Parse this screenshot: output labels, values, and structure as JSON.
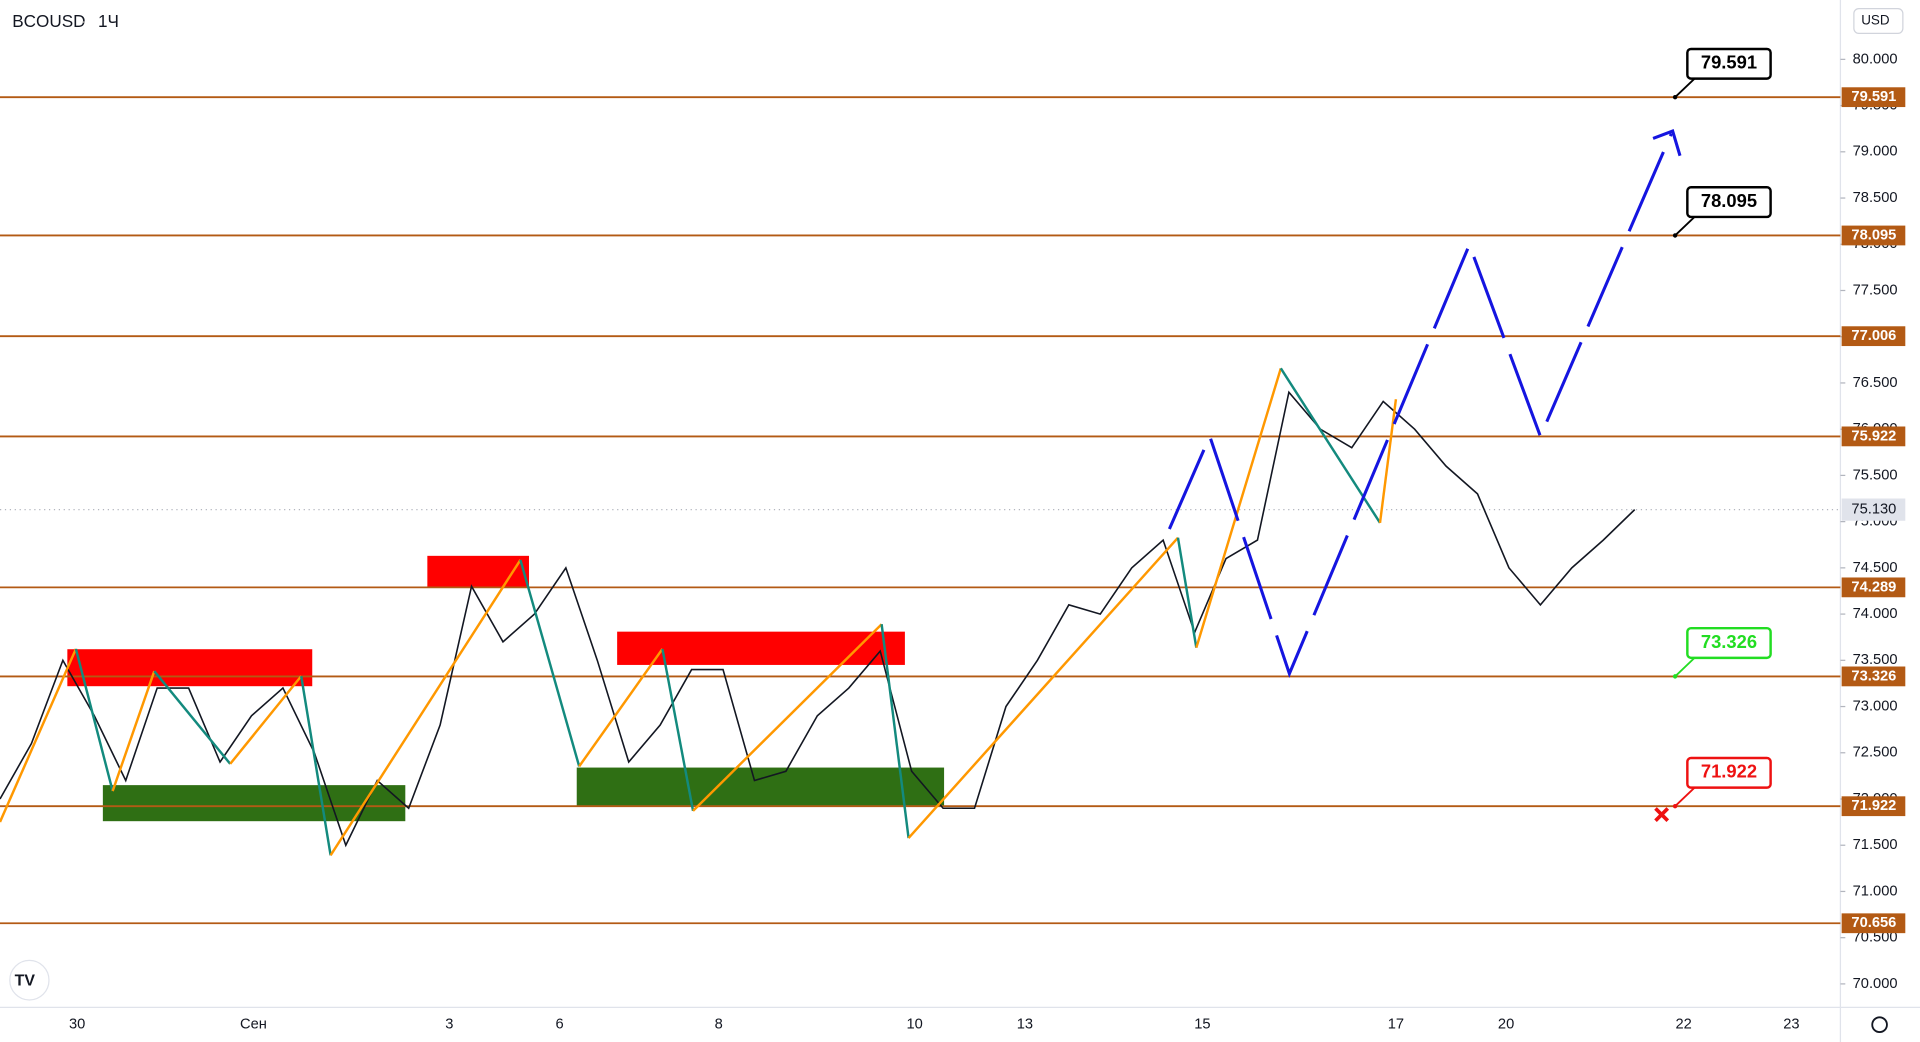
{
  "symbol": "BCOUSD",
  "interval": "1Ч",
  "currency": "USD",
  "chart_data": {
    "type": "line",
    "series": [
      {
        "name": "BCOUSD",
        "color": "#131722",
        "values": [
          72.0,
          72.6,
          73.5,
          72.9,
          72.2,
          73.2,
          73.2,
          72.4,
          72.9,
          73.2,
          72.5,
          71.5,
          72.2,
          71.9,
          72.8,
          74.3,
          73.7,
          74.0,
          74.5,
          73.5,
          72.4,
          72.8,
          73.4,
          73.4,
          72.2,
          72.3,
          72.9,
          73.2,
          73.6,
          72.3,
          71.9,
          71.9,
          73.0,
          73.5,
          74.1,
          74.0,
          74.5,
          74.8,
          73.8,
          74.6,
          74.8,
          76.4,
          76.0,
          75.8,
          76.3,
          76.0,
          75.6,
          75.3,
          74.5,
          74.1,
          74.5,
          74.8,
          75.13
        ]
      }
    ],
    "x_labels": [
      "30",
      "Сен",
      "3",
      "6",
      "8",
      "10",
      "13",
      "15",
      "17",
      "20",
      "22",
      "23"
    ],
    "ylim": [
      69.746,
      80.642
    ],
    "yticks": [
      {
        "value": 70,
        "label": "70.000"
      },
      {
        "value": 70.5,
        "label": "70.500"
      },
      {
        "value": 71,
        "label": "71.000"
      },
      {
        "value": 71.5,
        "label": "71.500"
      },
      {
        "value": 72,
        "label": "72.000"
      },
      {
        "value": 72.5,
        "label": "72.500"
      },
      {
        "value": 73,
        "label": "73.000"
      },
      {
        "value": 73.5,
        "label": "73.500"
      },
      {
        "value": 74,
        "label": "74.000"
      },
      {
        "value": 74.5,
        "label": "74.500"
      },
      {
        "value": 75,
        "label": "75.000"
      },
      {
        "value": 75.5,
        "label": "75.500"
      },
      {
        "value": 76,
        "label": "76.000"
      },
      {
        "value": 76.5,
        "label": "76.500"
      },
      {
        "value": 77,
        "label": "77.000"
      },
      {
        "value": 77.5,
        "label": "77.500"
      },
      {
        "value": 78,
        "label": "78.000"
      },
      {
        "value": 78.5,
        "label": "78.500"
      },
      {
        "value": 79,
        "label": "79.000"
      },
      {
        "value": 79.5,
        "label": "79.500"
      },
      {
        "value": 80,
        "label": "80.000"
      }
    ],
    "levels": [
      {
        "value": 79.591,
        "color": "#b35a14",
        "callout_color": "#000000"
      },
      {
        "value": 78.095,
        "color": "#b35a14",
        "callout_color": "#000000"
      },
      {
        "value": 77.006,
        "color": "#b35a14"
      },
      {
        "value": 75.922,
        "color": "#b35a14"
      },
      {
        "value": 74.289,
        "color": "#b35a14"
      },
      {
        "value": 73.326,
        "color": "#b35a14",
        "callout_color": "#22dd22"
      },
      {
        "value": 71.922,
        "color": "#b35a14",
        "callout_color": "#ee1111"
      },
      {
        "value": 70.656,
        "color": "#b35a14"
      }
    ],
    "last_price": {
      "value": 75.13,
      "label": "75.130"
    },
    "zones": [
      {
        "high": 73.62,
        "low": 73.22,
        "color": "#ff0000"
      },
      {
        "high": 72.15,
        "low": 71.76,
        "color": "#2f6f14"
      },
      {
        "high": 74.63,
        "low": 74.29,
        "color": "#ff0000"
      },
      {
        "high": 73.81,
        "low": 73.45,
        "color": "#ff0000"
      },
      {
        "high": 72.34,
        "low": 71.93,
        "color": "#2f6f14"
      }
    ]
  }
}
